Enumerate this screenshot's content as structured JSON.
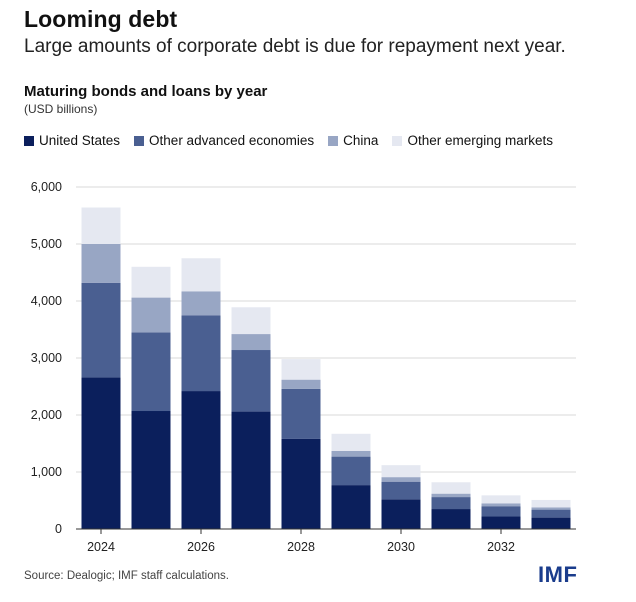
{
  "title": "Looming debt",
  "subtitle": "Large amounts of corporate debt is due for repayment next year.",
  "chart_data": {
    "type": "bar",
    "stacked": true,
    "title": "Maturing bonds and loans by year",
    "unit": "(USD billions)",
    "categories": [
      "2024",
      "2025",
      "2026",
      "2027",
      "2028",
      "2029",
      "2030",
      "2031",
      "2032",
      "2033"
    ],
    "x_tick_labels": [
      "2024",
      "",
      "2026",
      "",
      "2028",
      "",
      "2030",
      "",
      "2032",
      ""
    ],
    "y_ticks": [
      0,
      1000,
      2000,
      3000,
      4000,
      5000,
      6000
    ],
    "y_tick_labels": [
      "0",
      "1,000",
      "2,000",
      "3,000",
      "4,000",
      "5,000",
      "6,000"
    ],
    "ylim": [
      0,
      6000
    ],
    "grid": true,
    "legend_position": "top",
    "series": [
      {
        "name": "United States",
        "color": "#0b1f5c",
        "values": [
          2660,
          2070,
          2420,
          2060,
          1580,
          770,
          520,
          350,
          220,
          200
        ]
      },
      {
        "name": "Other advanced economies",
        "color": "#4a5f91",
        "values": [
          1660,
          1380,
          1330,
          1080,
          880,
          500,
          310,
          210,
          180,
          140
        ]
      },
      {
        "name": "China",
        "color": "#98a6c4",
        "values": [
          680,
          610,
          420,
          280,
          160,
          100,
          80,
          60,
          50,
          40
        ]
      },
      {
        "name": "Other emerging markets",
        "color": "#e5e8f1",
        "values": [
          640,
          540,
          580,
          470,
          360,
          300,
          210,
          200,
          140,
          130
        ]
      }
    ]
  },
  "footer": {
    "source": "Source: Dealogic; IMF staff calculations.",
    "logo_text": "IMF"
  }
}
